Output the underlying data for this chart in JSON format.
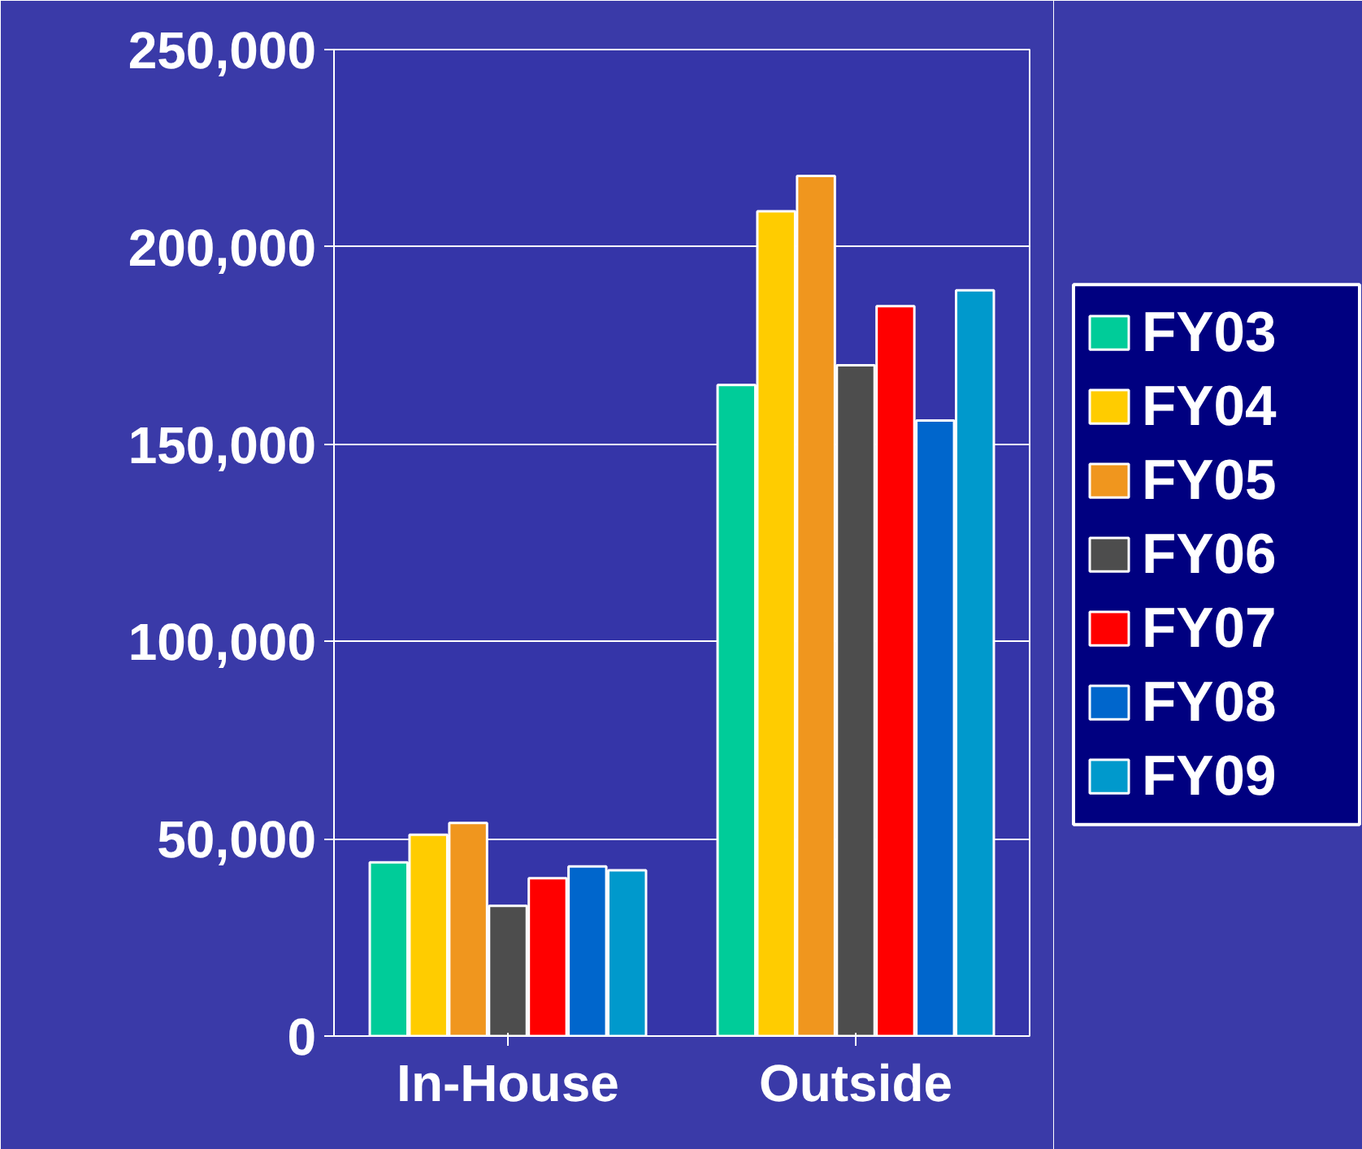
{
  "chart_data": {
    "type": "bar",
    "categories": [
      "In-House",
      "Outside"
    ],
    "series": [
      {
        "name": "FY03",
        "color": "#00cc99",
        "values": [
          44000,
          165000
        ]
      },
      {
        "name": "FY04",
        "color": "#ffcc00",
        "values": [
          51000,
          209000
        ]
      },
      {
        "name": "FY05",
        "color": "#f0961e",
        "values": [
          54000,
          218000
        ]
      },
      {
        "name": "FY06",
        "color": "#4d4d4d",
        "values": [
          33000,
          170000
        ]
      },
      {
        "name": "FY07",
        "color": "#ff0000",
        "values": [
          40000,
          185000
        ]
      },
      {
        "name": "FY08",
        "color": "#0066cc",
        "values": [
          43000,
          156000
        ]
      },
      {
        "name": "FY09",
        "color": "#0099cc",
        "values": [
          42000,
          189000
        ]
      }
    ],
    "ylim": [
      0,
      250000
    ],
    "yticks": [
      {
        "value": 0,
        "label": "0"
      },
      {
        "value": 50000,
        "label": "50,000"
      },
      {
        "value": 100000,
        "label": "100,000"
      },
      {
        "value": 150000,
        "label": "150,000"
      },
      {
        "value": 200000,
        "label": "200,000"
      },
      {
        "value": 250000,
        "label": "250,000"
      }
    ],
    "grid": "y",
    "legend": "right"
  }
}
